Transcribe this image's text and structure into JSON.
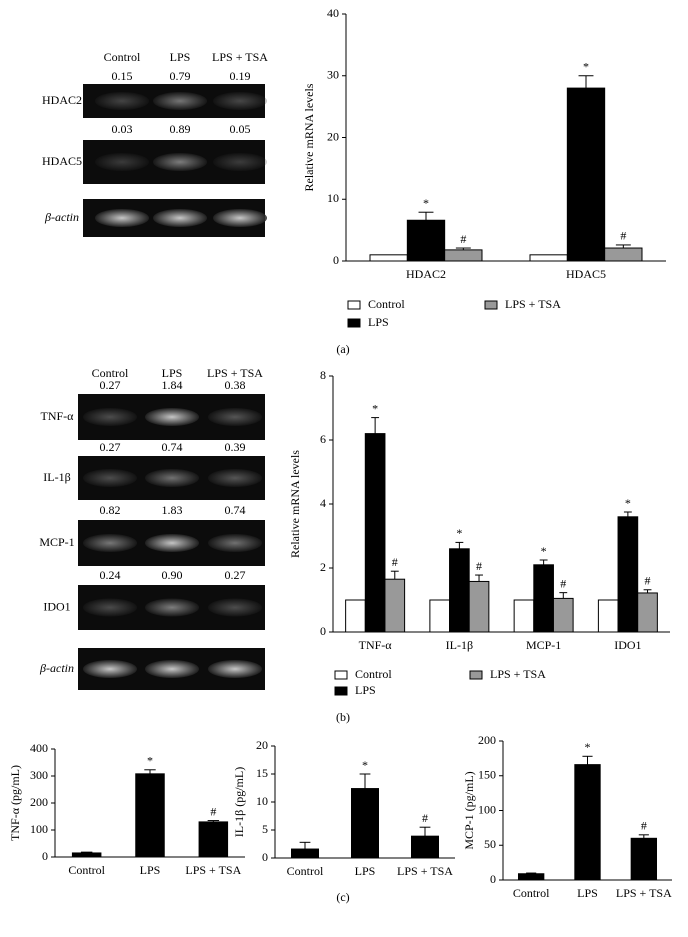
{
  "chart_data": [
    {
      "type": "bar",
      "y_label": "Relative mRNA levels",
      "categories": [
        "HDAC2",
        "HDAC5"
      ],
      "series": [
        {
          "name": "Control",
          "color": "#ffffff",
          "values": [
            1,
            1
          ]
        },
        {
          "name": "LPS",
          "color": "#000000",
          "values": [
            6.6,
            28.0
          ],
          "errors": [
            1.3,
            2.0
          ],
          "annotations": [
            "*",
            "*"
          ]
        },
        {
          "name": "LPS + TSA",
          "color": "#999999",
          "values": [
            1.8,
            2.1
          ],
          "errors": [
            0.3,
            0.5
          ],
          "annotations": [
            "#",
            "#"
          ]
        }
      ],
      "ylim": [
        0,
        40
      ],
      "yticks": [
        0,
        10,
        20,
        30,
        40
      ],
      "legend": "bottom"
    },
    {
      "type": "bar",
      "y_label": "Relative mRNA levels",
      "categories": [
        "TNF-α",
        "IL-1β",
        "MCP-1",
        "IDO1"
      ],
      "series": [
        {
          "name": "Control",
          "color": "#ffffff",
          "values": [
            1,
            1,
            1,
            1
          ]
        },
        {
          "name": "LPS",
          "color": "#000000",
          "values": [
            6.2,
            2.6,
            2.1,
            3.6
          ],
          "errors": [
            0.5,
            0.2,
            0.15,
            0.15
          ],
          "annotations": [
            "*",
            "*",
            "*",
            "*"
          ]
        },
        {
          "name": "LPS + TSA",
          "color": "#999999",
          "values": [
            1.65,
            1.58,
            1.05,
            1.22
          ],
          "errors": [
            0.25,
            0.2,
            0.18,
            0.1
          ],
          "annotations": [
            "#",
            "#",
            "#",
            "#"
          ]
        }
      ],
      "ylim": [
        0,
        8
      ],
      "yticks": [
        0,
        2,
        4,
        6,
        8
      ],
      "legend": "bottom"
    },
    {
      "type": "bar",
      "y_label": "TNF-α (pg/mL)",
      "categories": [
        "Control",
        "LPS",
        "LPS + TSA"
      ],
      "color": "#000000",
      "values": [
        15,
        308,
        130
      ],
      "errors": [
        3,
        15,
        5
      ],
      "annotations": [
        null,
        "*",
        "#"
      ],
      "ylim": [
        0,
        400
      ],
      "yticks": [
        0,
        100,
        200,
        300,
        400
      ]
    },
    {
      "type": "bar",
      "y_label": "IL-1β (pg/mL)",
      "categories": [
        "Control",
        "LPS",
        "LPS + TSA"
      ],
      "color": "#000000",
      "values": [
        1.6,
        12.4,
        3.9
      ],
      "errors": [
        1.2,
        2.6,
        1.6
      ],
      "annotations": [
        null,
        "*",
        "#"
      ],
      "ylim": [
        0,
        20
      ],
      "yticks": [
        0,
        5,
        10,
        15,
        20
      ]
    },
    {
      "type": "bar",
      "y_label": "MCP-1 (pg/mL)",
      "categories": [
        "Control",
        "LPS",
        "LPS + TSA"
      ],
      "color": "#000000",
      "values": [
        9,
        166,
        60
      ],
      "errors": [
        1,
        12,
        5
      ],
      "annotations": [
        null,
        "*",
        "#"
      ],
      "ylim": [
        0,
        200
      ],
      "yticks": [
        0,
        50,
        100,
        150,
        200
      ]
    }
  ],
  "blots": [
    {
      "lanes": [
        "Control",
        "LPS",
        "LPS + TSA"
      ],
      "rows": [
        {
          "label": "HDAC2",
          "values": [
            "0.15",
            "0.79",
            "0.19"
          ]
        },
        {
          "label": "HDAC5",
          "values": [
            "0.03",
            "0.89",
            "0.05"
          ]
        },
        {
          "label": "β-actin"
        }
      ]
    },
    {
      "lanes": [
        "Control",
        "LPS",
        "LPS + TSA"
      ],
      "rows": [
        {
          "label": "TNF-α",
          "values": [
            "0.27",
            "1.84",
            "0.38"
          ]
        },
        {
          "label": "IL-1β",
          "values": [
            "0.27",
            "0.74",
            "0.39"
          ]
        },
        {
          "label": "MCP-1",
          "values": [
            "0.82",
            "1.83",
            "0.74"
          ]
        },
        {
          "label": "IDO1",
          "values": [
            "0.24",
            "0.90",
            "0.27"
          ]
        },
        {
          "label": "β-actin"
        }
      ]
    }
  ],
  "panel_labels": [
    "(a)",
    "(b)",
    "(c)"
  ]
}
